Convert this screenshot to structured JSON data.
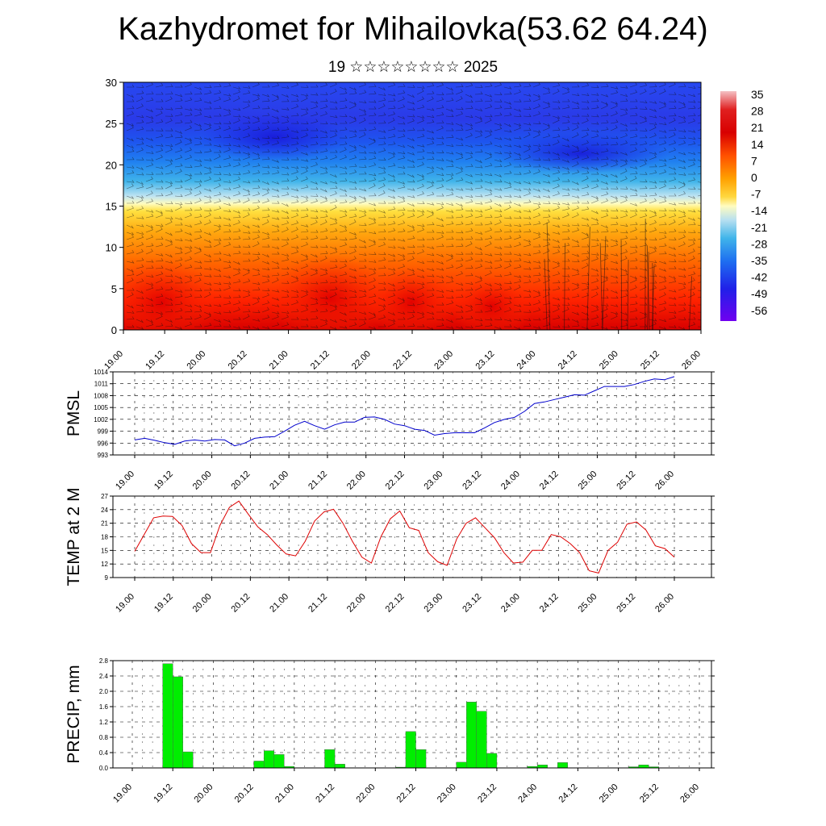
{
  "title": "Kazhydromet for Mihailovka(53.62 64.24)",
  "subtitle": "19 ☆☆☆☆☆☆☆☆ 2025",
  "time_labels": [
    "19.00",
    "19.12",
    "20.00",
    "20.12",
    "21.00",
    "21.12",
    "22.00",
    "22.12",
    "23.00",
    "23.12",
    "24.00",
    "24.12",
    "25.00",
    "25.12",
    "26.00"
  ],
  "chart_data": [
    {
      "type": "heatmap",
      "name_hint": "vertical cross-section",
      "ylim": [
        0,
        30
      ],
      "yticks": [
        0,
        5,
        10,
        15,
        20,
        25,
        30
      ],
      "colorbar_labels": [
        "35",
        "28",
        "21",
        "14",
        "7",
        "0",
        "-7",
        "-14",
        "-21",
        "-28",
        "-35",
        "-42",
        "-49",
        "-56"
      ],
      "colors": [
        "#f4c0c4",
        "#d80000",
        "#ff5000",
        "#ffa000",
        "#ffd840",
        "#fffcc0",
        "#b8e0f0",
        "#40b4ea",
        "#1e6ef0",
        "#2020e8",
        "#7000f0"
      ]
    },
    {
      "type": "line",
      "ylabel": "PMSL",
      "ylim": [
        993,
        1014
      ],
      "yticks": [
        993,
        996,
        999,
        1002,
        1005,
        1008,
        1011,
        1014
      ],
      "color": "#0000cc",
      "values": [
        996.8,
        997.2,
        996.7,
        996.1,
        995.7,
        996.5,
        996.8,
        996.5,
        996.9,
        996.8,
        995.3,
        996.0,
        997.2,
        997.5,
        997.6,
        999.0,
        1000.5,
        1001.5,
        1000.4,
        999.5,
        1000.6,
        1001.3,
        1001.3,
        1002.5,
        1002.6,
        1002.0,
        1000.8,
        1000.4,
        999.5,
        999.2,
        998.0,
        998.4,
        998.6,
        998.6,
        998.6,
        999.8,
        1001.2,
        1002.0,
        1002.5,
        1004.0,
        1006.0,
        1006.4,
        1007.0,
        1007.6,
        1008.2,
        1008.1,
        1009.2,
        1010.3,
        1010.3,
        1010.3,
        1010.8,
        1011.6,
        1012.2,
        1012.0,
        1012.8
      ]
    },
    {
      "type": "line",
      "ylabel": "TEMP at 2 M",
      "ylim": [
        9,
        27
      ],
      "yticks": [
        9,
        12,
        15,
        18,
        21,
        24,
        27
      ],
      "color": "#dd0000",
      "values": [
        14.8,
        18.5,
        22.2,
        22.6,
        22.5,
        20.5,
        16.5,
        14.5,
        14.5,
        20.5,
        24.5,
        25.9,
        23.0,
        20.2,
        18.5,
        16.2,
        14.2,
        13.8,
        17.0,
        21.5,
        23.5,
        24.1,
        21.0,
        17.0,
        13.5,
        12.2,
        18.0,
        22.0,
        23.7,
        20.0,
        19.4,
        14.5,
        12.5,
        11.7,
        17.5,
        21.0,
        22.2,
        20.0,
        17.8,
        14.5,
        12.2,
        12.4,
        15.0,
        15.0,
        18.5,
        18.0,
        16.5,
        14.5,
        10.5,
        10.0,
        15.0,
        16.8,
        20.8,
        21.3,
        19.5,
        16.0,
        15.4,
        13.5
      ]
    },
    {
      "type": "bar",
      "ylabel": "PRECIP, mm",
      "ylim": [
        0,
        2.8
      ],
      "yticks": [
        "0.0",
        "0.4",
        "0.8",
        "1.2",
        "1.6",
        "2.0",
        "2.4",
        "2.8"
      ],
      "color": "#00ee00",
      "values": [
        0,
        0,
        0,
        2.72,
        2.38,
        0.42,
        0,
        0,
        0,
        0,
        0,
        0,
        0.18,
        0.45,
        0.35,
        0.04,
        0,
        0,
        0,
        0.48,
        0.1,
        0,
        0,
        0,
        0,
        0,
        0.02,
        0.95,
        0.48,
        0,
        0,
        0,
        0.15,
        1.72,
        1.48,
        0.38,
        0,
        0,
        0,
        0.04,
        0.08,
        0,
        0.14,
        0,
        0,
        0,
        0,
        0,
        0,
        0.03,
        0.08,
        0.03,
        0,
        0,
        0,
        0
      ]
    }
  ]
}
